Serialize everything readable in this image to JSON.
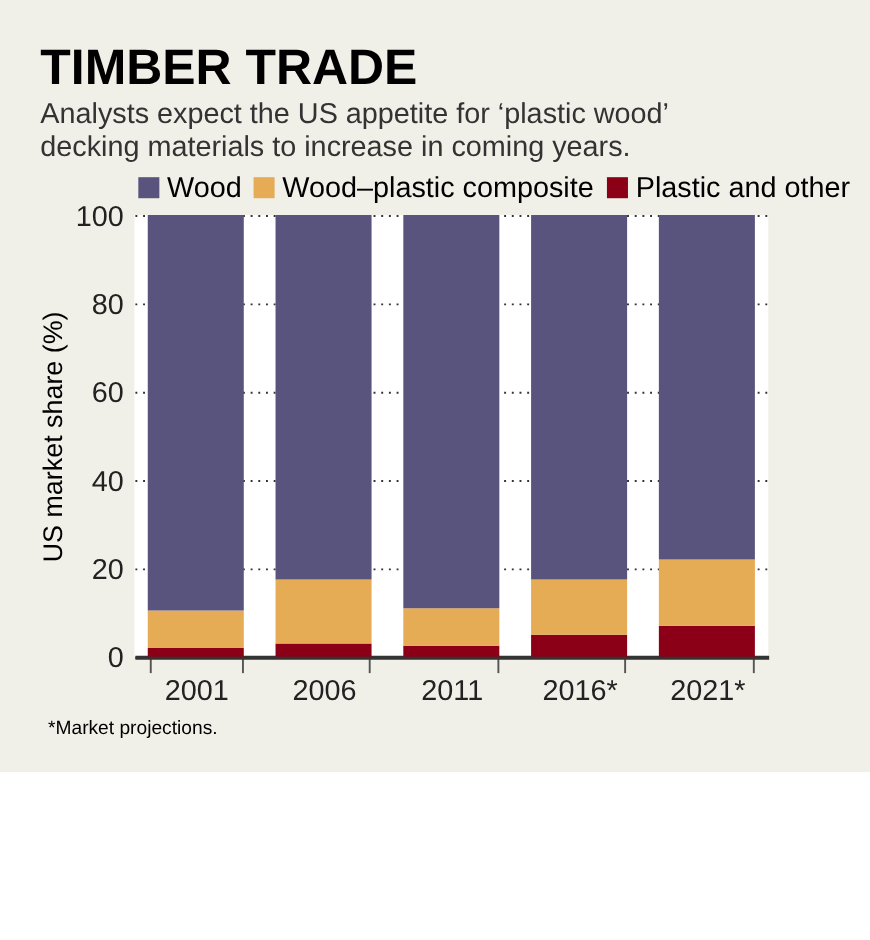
{
  "chart_data": {
    "type": "bar",
    "stacked": true,
    "title": "TIMBER TRADE",
    "subtitle": [
      "Analysts expect the US appetite for ‘plastic wood’",
      "decking materials to increase in coming years."
    ],
    "ylabel": "US market share (%)",
    "categories": [
      "2001",
      "2006",
      "2011",
      "2016*",
      "2021*"
    ],
    "series": [
      {
        "name": "Plastic and other",
        "color": "#8b0016",
        "values": [
          2,
          3,
          2.5,
          5,
          7
        ]
      },
      {
        "name": "Wood–plastic composite",
        "color": "#e5ab55",
        "values": [
          8.5,
          14.5,
          8.5,
          12.5,
          15
        ]
      },
      {
        "name": "Wood",
        "color": "#58547e",
        "values": [
          89.5,
          82.5,
          89,
          82.5,
          78
        ]
      }
    ],
    "ylim": [
      0,
      100
    ],
    "yticks": [
      0,
      20,
      40,
      60,
      80,
      100
    ],
    "grid": "y",
    "legend": "top",
    "annotations": [
      "*Market projections."
    ]
  }
}
